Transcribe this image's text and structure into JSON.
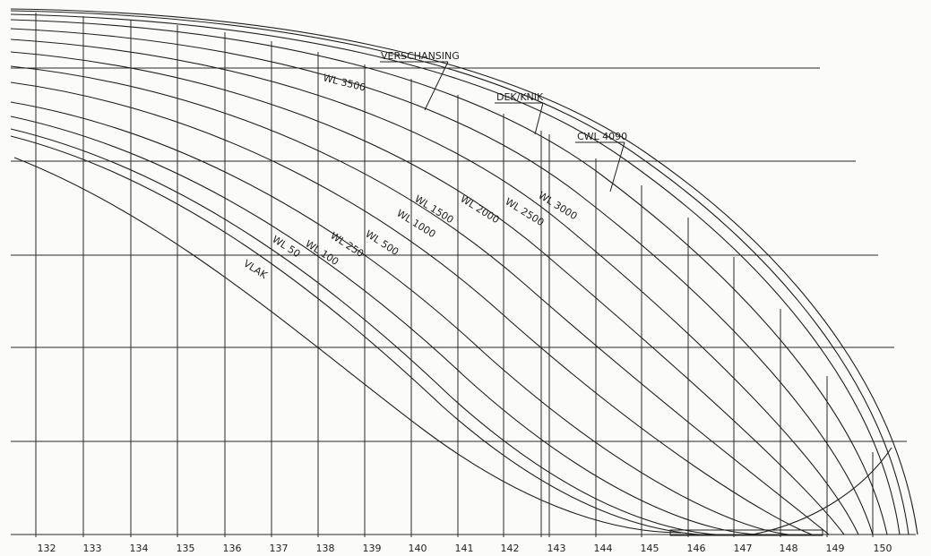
{
  "drawing": {
    "frame_numbers": [
      "132",
      "133",
      "134",
      "135",
      "136",
      "137",
      "138",
      "139",
      "140",
      "141",
      "142",
      "143",
      "144",
      "145",
      "146",
      "147",
      "148",
      "149",
      "150"
    ],
    "labels": {
      "verschansing": "VERSCHANSING",
      "dek_knik": "DEK/KNIK",
      "cwl": "CWL 4090",
      "wl3500": "WL 3500",
      "wl3000": "WL 3000",
      "wl2500": "WL 2500",
      "wl2000": "WL 2000",
      "wl1500": "WL 1500",
      "wl1000": "WL 1000",
      "wl500": "WL 500",
      "wl250": "WL 250",
      "wl100": "WL 100",
      "wl50": "WL 50",
      "vlak": "VLAK"
    }
  }
}
